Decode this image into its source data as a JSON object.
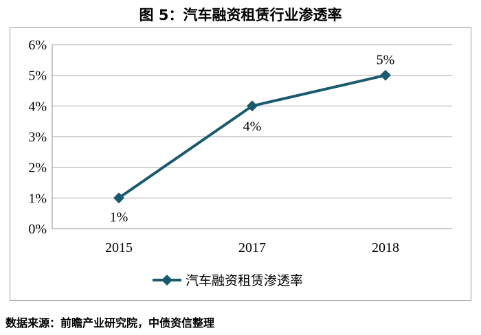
{
  "figure": {
    "title": "图 5：汽车融资租赁行业渗透率",
    "source_note": "数据来源：前瞻产业研究院，中债资信整理"
  },
  "chart_data": {
    "type": "line",
    "title": "",
    "xlabel": "",
    "ylabel": "",
    "categories": [
      "2015",
      "2017",
      "2018"
    ],
    "series": [
      {
        "name": "汽车融资租赁渗透率",
        "values": [
          0.01,
          0.04,
          0.05
        ],
        "data_labels": [
          "1%",
          "4%",
          "5%"
        ],
        "color": "#1a5a6e",
        "marker": "diamond"
      }
    ],
    "ylim": [
      0,
      0.06
    ],
    "yticks": [
      0,
      0.01,
      0.02,
      0.03,
      0.04,
      0.05,
      0.06
    ],
    "ytick_labels": [
      "0%",
      "1%",
      "2%",
      "3%",
      "4%",
      "5%",
      "6%"
    ],
    "grid": true,
    "legend": "bottom"
  }
}
